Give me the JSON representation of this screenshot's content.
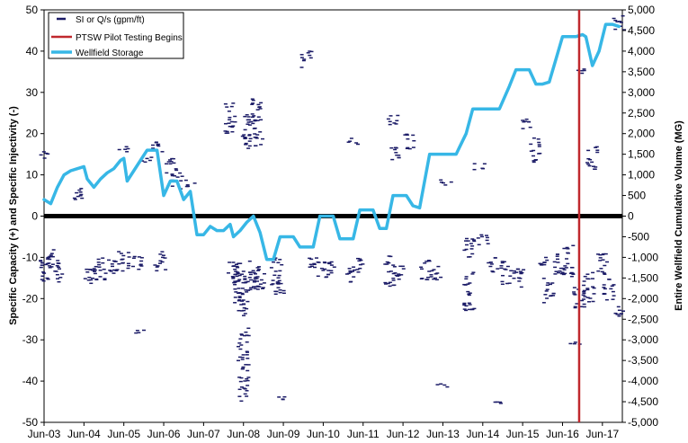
{
  "chart_data": {
    "type": "scatter",
    "title": "",
    "xlabel": "",
    "ylabel": "Specific Capacity (+) and Specific Injectivity (-)",
    "ylabel_right": "Entire Wellfield Cumulative Volume (MG)",
    "x_ticks": [
      "Jun-03",
      "Jun-04",
      "Jun-05",
      "Jun-06",
      "Jun-07",
      "Jun-08",
      "Jun-09",
      "Jun-10",
      "Jun-11",
      "Jun-12",
      "Jun-13",
      "Jun-14",
      "Jun-15",
      "Jun-16",
      "Jun-17"
    ],
    "xlim": [
      "2003-06",
      "2017-12"
    ],
    "ylim_left": [
      -50,
      50
    ],
    "left_ticks": [
      "50",
      "40",
      "30",
      "20",
      "10",
      "0",
      "-10",
      "-20",
      "-30",
      "-40",
      "-50"
    ],
    "ylim_right": [
      -5000,
      5000
    ],
    "right_ticks": [
      "5,000",
      "4,500",
      "4,000",
      "3,500",
      "3,000",
      "2,500",
      "2,000",
      "1,500",
      "1,000",
      "500",
      "0",
      "-500",
      "-1,000",
      "-1,500",
      "-2,000",
      "-2,500",
      "-3,000",
      "-3,500",
      "-4,000",
      "-4,500",
      "-5,000"
    ],
    "grid": false,
    "legend_position": "top-left",
    "legend": [
      {
        "label": "SI or Q/s (gpm/ft)",
        "marker": "dash",
        "color": "#1a1a66"
      },
      {
        "label": "PTSW Pilot Testing Begins",
        "marker": "line",
        "color": "#c0282d"
      },
      {
        "label": "Wellfield Storage",
        "marker": "line",
        "color": "#37b7e6"
      }
    ],
    "zero_line": {
      "y": 0,
      "color": "#000000"
    },
    "pilot_testing_line": {
      "x": "2016-11",
      "color": "#c0282d"
    },
    "wellfield_storage": {
      "name": "Wellfield Storage",
      "color": "#37b7e6",
      "axis": "right",
      "points": [
        [
          "2003-06",
          400
        ],
        [
          "2003-08",
          300
        ],
        [
          "2003-10",
          700
        ],
        [
          "2003-12",
          1000
        ],
        [
          "2004-02",
          1100
        ],
        [
          "2004-04",
          1150
        ],
        [
          "2004-06",
          1200
        ],
        [
          "2004-07",
          900
        ],
        [
          "2004-09",
          700
        ],
        [
          "2004-11",
          900
        ],
        [
          "2005-01",
          1050
        ],
        [
          "2005-03",
          1150
        ],
        [
          "2005-05",
          1350
        ],
        [
          "2005-06",
          1400
        ],
        [
          "2005-07",
          850
        ],
        [
          "2005-09",
          1100
        ],
        [
          "2005-11",
          1350
        ],
        [
          "2006-01",
          1600
        ],
        [
          "2006-04",
          1600
        ],
        [
          "2006-06",
          500
        ],
        [
          "2006-08",
          850
        ],
        [
          "2006-10",
          850
        ],
        [
          "2006-12",
          400
        ],
        [
          "2007-02",
          600
        ],
        [
          "2007-04",
          -450
        ],
        [
          "2007-06",
          -450
        ],
        [
          "2007-08",
          -250
        ],
        [
          "2007-10",
          -350
        ],
        [
          "2007-12",
          -350
        ],
        [
          "2008-02",
          -200
        ],
        [
          "2008-03",
          -500
        ],
        [
          "2008-05",
          -350
        ],
        [
          "2008-07",
          -150
        ],
        [
          "2008-09",
          0
        ],
        [
          "2008-11",
          -400
        ],
        [
          "2009-01",
          -1050
        ],
        [
          "2009-03",
          -1050
        ],
        [
          "2009-05",
          -500
        ],
        [
          "2009-07",
          -500
        ],
        [
          "2009-09",
          -500
        ],
        [
          "2009-11",
          -750
        ],
        [
          "2010-01",
          -750
        ],
        [
          "2010-03",
          -750
        ],
        [
          "2010-05",
          0
        ],
        [
          "2010-07",
          0
        ],
        [
          "2010-09",
          0
        ],
        [
          "2010-11",
          -550
        ],
        [
          "2011-01",
          -550
        ],
        [
          "2011-03",
          -550
        ],
        [
          "2011-05",
          150
        ],
        [
          "2011-07",
          150
        ],
        [
          "2011-09",
          150
        ],
        [
          "2011-11",
          -300
        ],
        [
          "2012-01",
          -300
        ],
        [
          "2012-03",
          500
        ],
        [
          "2012-05",
          500
        ],
        [
          "2012-07",
          500
        ],
        [
          "2012-09",
          250
        ],
        [
          "2012-11",
          200
        ],
        [
          "2013-02",
          1500
        ],
        [
          "2013-04",
          1500
        ],
        [
          "2013-06",
          1500
        ],
        [
          "2013-08",
          1500
        ],
        [
          "2013-10",
          1500
        ],
        [
          "2014-01",
          2000
        ],
        [
          "2014-03",
          2600
        ],
        [
          "2014-05",
          2600
        ],
        [
          "2014-07",
          2600
        ],
        [
          "2014-09",
          2600
        ],
        [
          "2014-11",
          2600
        ],
        [
          "2015-02",
          3150
        ],
        [
          "2015-04",
          3550
        ],
        [
          "2015-06",
          3550
        ],
        [
          "2015-08",
          3550
        ],
        [
          "2015-10",
          3200
        ],
        [
          "2015-12",
          3200
        ],
        [
          "2016-02",
          3250
        ],
        [
          "2016-04",
          3800
        ],
        [
          "2016-06",
          4350
        ],
        [
          "2016-08",
          4350
        ],
        [
          "2016-10",
          4350
        ],
        [
          "2016-12",
          4400
        ],
        [
          "2017-01",
          4350
        ],
        [
          "2017-03",
          3650
        ],
        [
          "2017-05",
          4000
        ],
        [
          "2017-07",
          4650
        ],
        [
          "2017-09",
          4650
        ],
        [
          "2017-11",
          4600
        ]
      ]
    },
    "si_qs_clusters": {
      "name": "SI or Q/s (gpm/ft)",
      "color": "#1a1a66",
      "axis": "left",
      "clusters": [
        [
          "2003-06",
          -13,
          3.5
        ],
        [
          "2003-09",
          -11,
          3
        ],
        [
          "2003-06",
          15,
          1
        ],
        [
          "2003-10",
          -14,
          2
        ],
        [
          "2004-04",
          6,
          2
        ],
        [
          "2004-08",
          -14,
          3
        ],
        [
          "2004-11",
          -13,
          3
        ],
        [
          "2005-03",
          -12,
          2.5
        ],
        [
          "2005-06",
          -11,
          2.5
        ],
        [
          "2005-06",
          16,
          1
        ],
        [
          "2005-10",
          -11,
          2
        ],
        [
          "2005-11",
          -28,
          0.5
        ],
        [
          "2006-01",
          14,
          1
        ],
        [
          "2006-04",
          17,
          1.5
        ],
        [
          "2006-05",
          -11,
          2.5
        ],
        [
          "2006-08",
          12,
          2
        ],
        [
          "2006-10",
          9,
          2.5
        ],
        [
          "2007-02",
          8,
          1
        ],
        [
          "2008-02",
          24,
          4
        ],
        [
          "2008-03",
          -14,
          3
        ],
        [
          "2008-05",
          -17,
          6
        ],
        [
          "2008-06",
          -36,
          9
        ],
        [
          "2008-06",
          -20,
          5
        ],
        [
          "2008-07",
          18,
          2
        ],
        [
          "2008-08",
          21,
          4
        ],
        [
          "2008-09",
          -14,
          4
        ],
        [
          "2008-10",
          26,
          3
        ],
        [
          "2008-11",
          19,
          2
        ],
        [
          "2008-11",
          -15,
          3
        ],
        [
          "2009-04",
          -14,
          4
        ],
        [
          "2009-05",
          -44,
          0.5
        ],
        [
          "2009-05",
          -17,
          2
        ],
        [
          "2010-01",
          38,
          2
        ],
        [
          "2010-03",
          -12,
          2
        ],
        [
          "2010-06",
          -13,
          2
        ],
        [
          "2010-08",
          -12,
          2
        ],
        [
          "2011-02",
          -14,
          2
        ],
        [
          "2011-03",
          18,
          1
        ],
        [
          "2011-05",
          -12,
          2
        ],
        [
          "2012-02",
          -13,
          4
        ],
        [
          "2012-03",
          23,
          1.5
        ],
        [
          "2012-04",
          15,
          2
        ],
        [
          "2012-05",
          -14,
          2
        ],
        [
          "2012-08",
          18,
          2
        ],
        [
          "2013-01",
          -13,
          2.5
        ],
        [
          "2013-04",
          -14,
          2
        ],
        [
          "2013-06",
          -41,
          0.5
        ],
        [
          "2013-07",
          8,
          1
        ],
        [
          "2014-02",
          -8,
          3
        ],
        [
          "2014-02",
          -18,
          5
        ],
        [
          "2014-05",
          12,
          1
        ],
        [
          "2014-06",
          -6,
          1.5
        ],
        [
          "2014-09",
          -12,
          2
        ],
        [
          "2014-11",
          -45,
          0.5
        ],
        [
          "2015-01",
          -14,
          3
        ],
        [
          "2015-05",
          -15,
          3
        ],
        [
          "2015-07",
          22,
          1.5
        ],
        [
          "2015-10",
          16,
          3
        ],
        [
          "2015-12",
          -12,
          2
        ],
        [
          "2016-02",
          -18,
          3
        ],
        [
          "2016-05",
          -12,
          3
        ],
        [
          "2016-08",
          -11,
          4
        ],
        [
          "2016-10",
          -31,
          0.5
        ],
        [
          "2016-11",
          -20,
          3
        ],
        [
          "2016-12",
          35,
          1
        ],
        [
          "2017-03",
          14,
          3
        ],
        [
          "2017-02",
          -17,
          4
        ],
        [
          "2017-06",
          -12,
          3
        ],
        [
          "2017-08",
          -18,
          3
        ],
        [
          "2017-11",
          47,
          2
        ],
        [
          "2017-11",
          -23,
          1.5
        ]
      ]
    }
  }
}
